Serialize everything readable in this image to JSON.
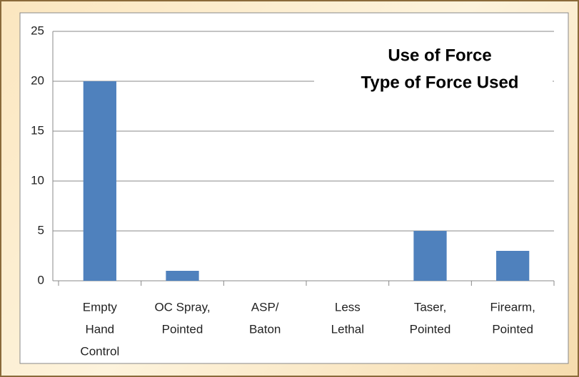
{
  "chart_data": {
    "type": "bar",
    "title": [
      "Use of Force",
      "Type of Force Used"
    ],
    "categories": [
      [
        "Empty",
        "Hand",
        "Control"
      ],
      [
        "OC Spray,",
        "Pointed"
      ],
      [
        "ASP/",
        "Baton"
      ],
      [
        "Less",
        "Lethal"
      ],
      [
        "Taser,",
        "Pointed"
      ],
      [
        "Firearm,",
        "Pointed"
      ]
    ],
    "values": [
      20,
      1,
      0,
      0,
      5,
      3
    ],
    "color": "#4f81bd",
    "ylim": [
      0,
      25
    ],
    "yticks": [
      0,
      5,
      10,
      15,
      20,
      25
    ],
    "grid": true
  }
}
